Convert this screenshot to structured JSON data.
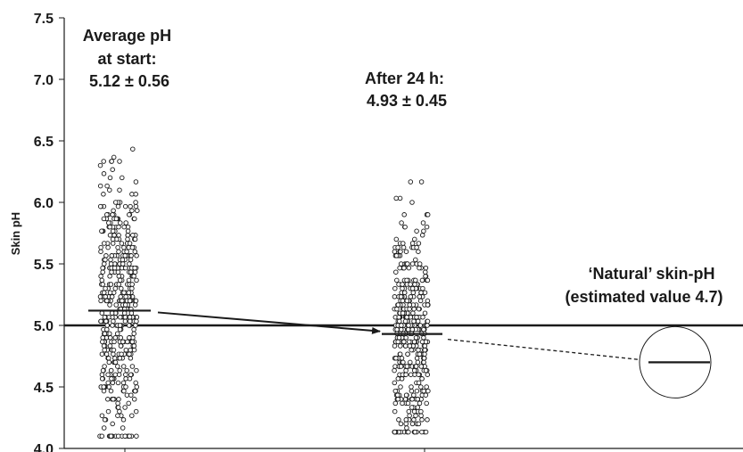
{
  "chart_data": {
    "type": "scatter",
    "ylabel": "Skin pH",
    "ylim": [
      4.0,
      7.5
    ],
    "y_ticks": [
      "4.0",
      "4.5",
      "5.0",
      "5.5",
      "6.0",
      "6.5",
      "7.0",
      "7.5"
    ],
    "reference_line": {
      "y": 5.0
    },
    "groups": [
      {
        "key": "start",
        "mean": 5.12,
        "sd": 0.56,
        "annotation_lines": [
          "Average pH",
          "at start:",
          "5.12 ± 0.56"
        ]
      },
      {
        "key": "after_24h",
        "mean": 4.93,
        "sd": 0.45,
        "annotation_lines": [
          "After 24 h:",
          "4.93 ± 0.45"
        ]
      }
    ],
    "natural": {
      "value": 4.7,
      "annotation_lines": [
        "‘Natural’ skin-pH",
        "(estimated value 4.7)"
      ]
    },
    "colors": {
      "ink": "#1a1a1a",
      "background": "#ffffff"
    }
  }
}
